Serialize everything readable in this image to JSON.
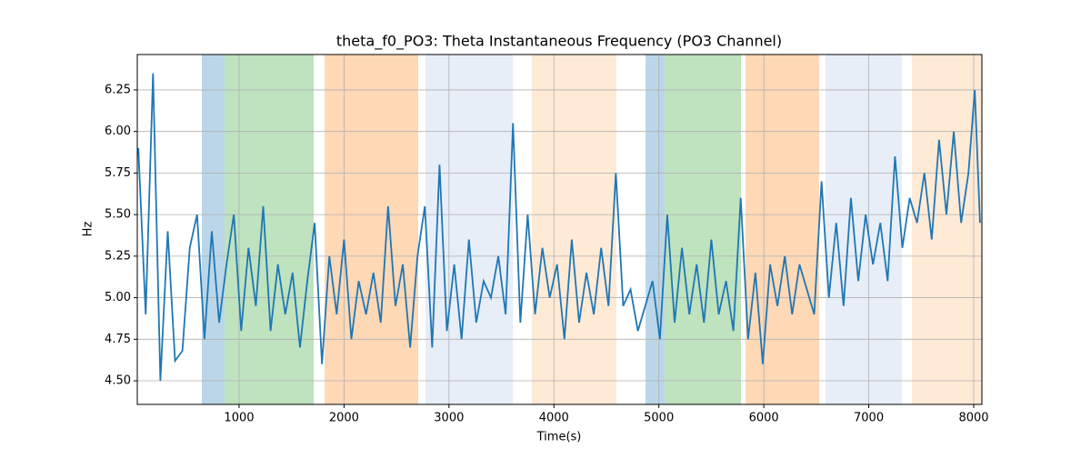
{
  "chart_data": {
    "type": "line",
    "title": "theta_f0_PO3: Theta Instantaneous Frequency (PO3 Channel)",
    "xlabel": "Time(s)",
    "ylabel": "Hz",
    "xlim": [
      30,
      8078
    ],
    "ylim": [
      4.358,
      6.463
    ],
    "xticks": [
      1000,
      2000,
      3000,
      4000,
      5000,
      6000,
      7000,
      8000
    ],
    "yticks": [
      {
        "value": 4.5,
        "label": "4.50"
      },
      {
        "value": 4.75,
        "label": "4.75"
      },
      {
        "value": 5.0,
        "label": "5.00"
      },
      {
        "value": 5.25,
        "label": "5.25"
      },
      {
        "value": 5.5,
        "label": "5.50"
      },
      {
        "value": 5.75,
        "label": "5.75"
      },
      {
        "value": 6.0,
        "label": "6.00"
      },
      {
        "value": 6.25,
        "label": "6.25"
      }
    ],
    "grid": true,
    "regions": [
      {
        "start": 645,
        "end": 862,
        "color": "#1f77b4",
        "alpha": 0.3
      },
      {
        "start": 862,
        "end": 1711,
        "color": "#2ca02c",
        "alpha": 0.3
      },
      {
        "start": 1815,
        "end": 2707,
        "color": "#ff7f0e",
        "alpha": 0.3
      },
      {
        "start": 2776,
        "end": 3608,
        "color": "#aec7e8",
        "alpha": 0.3
      },
      {
        "start": 3790,
        "end": 4596,
        "color": "#ffbb78",
        "alpha": 0.3
      },
      {
        "start": 4873,
        "end": 5055,
        "color": "#1f77b4",
        "alpha": 0.3
      },
      {
        "start": 5055,
        "end": 5782,
        "color": "#2ca02c",
        "alpha": 0.3
      },
      {
        "start": 5826,
        "end": 6527,
        "color": "#ff7f0e",
        "alpha": 0.3
      },
      {
        "start": 6588,
        "end": 7316,
        "color": "#aec7e8",
        "alpha": 0.3
      },
      {
        "start": 7411,
        "end": 8078,
        "color": "#ffbb78",
        "alpha": 0.3
      }
    ],
    "x": [
      40,
      110,
      180,
      250,
      320,
      390,
      460,
      530,
      600,
      670,
      740,
      810,
      880,
      950,
      1020,
      1090,
      1160,
      1230,
      1300,
      1370,
      1440,
      1510,
      1580,
      1650,
      1720,
      1790,
      1860,
      1930,
      2000,
      2070,
      2140,
      2210,
      2280,
      2350,
      2420,
      2490,
      2560,
      2630,
      2700,
      2770,
      2840,
      2910,
      2980,
      3050,
      3120,
      3190,
      3260,
      3330,
      3400,
      3470,
      3540,
      3610,
      3680,
      3750,
      3820,
      3890,
      3960,
      4030,
      4100,
      4170,
      4240,
      4310,
      4380,
      4450,
      4520,
      4590,
      4660,
      4730,
      4800,
      4870,
      4940,
      5010,
      5080,
      5150,
      5220,
      5290,
      5360,
      5430,
      5500,
      5570,
      5640,
      5710,
      5780,
      5850,
      5920,
      5990,
      6060,
      6130,
      6200,
      6270,
      6340,
      6410,
      6480,
      6550,
      6620,
      6690,
      6760,
      6830,
      6900,
      6970,
      7040,
      7110,
      7180,
      7250,
      7320,
      7390,
      7460,
      7530,
      7600,
      7670,
      7740,
      7810,
      7880,
      7950,
      8010,
      8060
    ],
    "series": [
      {
        "name": "theta_f0_PO3",
        "color": "#1f77b4",
        "values": [
          5.9,
          4.9,
          6.35,
          4.5,
          5.4,
          4.62,
          4.68,
          5.3,
          5.5,
          4.75,
          5.4,
          4.85,
          5.2,
          5.5,
          4.8,
          5.3,
          4.95,
          5.55,
          4.8,
          5.2,
          4.9,
          5.15,
          4.7,
          5.1,
          5.45,
          4.6,
          5.25,
          4.9,
          5.35,
          4.75,
          5.1,
          4.9,
          5.15,
          4.85,
          5.55,
          4.95,
          5.2,
          4.7,
          5.25,
          5.55,
          4.7,
          5.8,
          4.8,
          5.2,
          4.75,
          5.35,
          4.85,
          5.1,
          5.0,
          5.25,
          4.9,
          6.05,
          4.85,
          5.5,
          4.9,
          5.3,
          5.0,
          5.2,
          4.75,
          5.35,
          4.85,
          5.15,
          4.9,
          5.3,
          4.95,
          5.75,
          4.95,
          5.05,
          4.8,
          4.95,
          5.1,
          4.75,
          5.5,
          4.85,
          5.3,
          4.9,
          5.2,
          4.85,
          5.35,
          4.9,
          5.1,
          4.8,
          5.6,
          4.75,
          5.15,
          4.6,
          5.2,
          4.95,
          5.25,
          4.9,
          5.2,
          5.05,
          4.9,
          5.7,
          5.0,
          5.45,
          4.95,
          5.6,
          5.1,
          5.5,
          5.2,
          5.45,
          5.1,
          5.85,
          5.3,
          5.6,
          5.45,
          5.75,
          5.35,
          5.95,
          5.5,
          6.0,
          5.45,
          5.75,
          6.25,
          5.45
        ]
      }
    ]
  }
}
